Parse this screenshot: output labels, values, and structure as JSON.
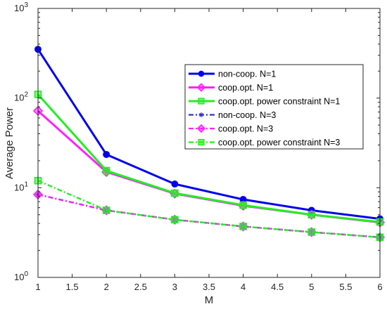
{
  "chart_data": {
    "type": "line",
    "xlabel": "M",
    "ylabel": "Average Power",
    "xlim": [
      1,
      6
    ],
    "ylim": [
      1,
      1000
    ],
    "yscale": "log",
    "grid": false,
    "legend_position": "right",
    "x": [
      1,
      2,
      3,
      4,
      5,
      6
    ],
    "x_ticks": [
      "1",
      "1.5",
      "2",
      "2.5",
      "3",
      "3.5",
      "4",
      "4.5",
      "5",
      "5.5",
      "6"
    ],
    "y_ticks": [
      {
        "base": "10",
        "exp": "0",
        "value": 1
      },
      {
        "base": "10",
        "exp": "1",
        "value": 10
      },
      {
        "base": "10",
        "exp": "2",
        "value": 100
      },
      {
        "base": "10",
        "exp": "3",
        "value": 1000
      }
    ],
    "series": [
      {
        "name": "non-coop. N=1",
        "color": "#0000ee",
        "line": "solid",
        "marker": "circle",
        "values": [
          350,
          23.5,
          11,
          7.4,
          5.6,
          4.5
        ]
      },
      {
        "name": "coop.opt. N=1",
        "color": "#ff22ff",
        "line": "solid",
        "marker": "diamond",
        "values": [
          72,
          15,
          8.6,
          6.3,
          5.0,
          4.1
        ]
      },
      {
        "name": "coop.opt. power constraint N=1",
        "color": "#22ee22",
        "line": "solid",
        "marker": "square",
        "values": [
          110,
          15.5,
          8.7,
          6.4,
          5.0,
          4.15
        ]
      },
      {
        "name": "non-coop. N=3",
        "color": "#3333cc",
        "line": "dashdot",
        "marker": "asterisk",
        "values": [
          8.4,
          5.6,
          4.4,
          3.7,
          3.2,
          2.8
        ]
      },
      {
        "name": "coop.opt. N=3",
        "color": "#ff22ff",
        "line": "dashdot",
        "marker": "diamond",
        "values": [
          8.4,
          5.6,
          4.4,
          3.7,
          3.2,
          2.8
        ]
      },
      {
        "name": "coop.opt. power constraint N=3",
        "color": "#22ee22",
        "line": "dashdot",
        "marker": "square",
        "values": [
          12,
          5.6,
          4.4,
          3.7,
          3.2,
          2.8
        ]
      }
    ]
  }
}
